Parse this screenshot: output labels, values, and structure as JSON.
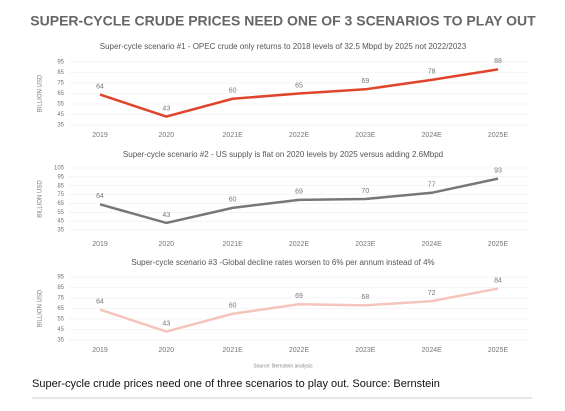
{
  "title": "SUPER-CYCLE CRUDE PRICES NEED ONE OF 3 SCENARIOS TO PLAY OUT",
  "chart_data": [
    {
      "type": "line",
      "subtitle": "Super-cycle scenario #1 - OPEC crude only returns to 2018 levels of 32.5 Mbpd by 2025 not 2022/2023",
      "y_label": "BILLION USD",
      "categories": [
        "2019",
        "2020",
        "2021E",
        "2022E",
        "2023E",
        "2024E",
        "2025E"
      ],
      "series": [
        {
          "name": "Scenario 1",
          "color": "#e0452b",
          "values": [
            64,
            43,
            60,
            65,
            69,
            78,
            88
          ]
        }
      ],
      "ylim": [
        35,
        95
      ],
      "yticks": [
        35,
        45,
        55,
        65,
        75,
        85,
        95
      ],
      "grid": true
    },
    {
      "type": "line",
      "subtitle": "Super-cycle scenario #2 - US supply is flat on 2020 levels by 2025 versus adding 2.6Mbpd",
      "y_label": "BILLION USD",
      "categories": [
        "2019",
        "2020",
        "2021E",
        "2022E",
        "2023E",
        "2024E",
        "2025E"
      ],
      "series": [
        {
          "name": "Scenario 2",
          "color": "#777777",
          "values": [
            64,
            43,
            60,
            69,
            70,
            77,
            93
          ]
        }
      ],
      "ylim": [
        35,
        105
      ],
      "yticks": [
        35,
        45,
        55,
        65,
        75,
        85,
        95,
        105
      ],
      "grid": true
    },
    {
      "type": "line",
      "subtitle": "Super-cycle scenario #3 -Global decline rates worsen to 6% per annum instead of 4%",
      "y_label": "BILLION USD",
      "categories": [
        "2019",
        "2020",
        "2021E",
        "2022E",
        "2023E",
        "2024E",
        "2025E"
      ],
      "series": [
        {
          "name": "Scenario 3",
          "color": "#f5c4bc",
          "values": [
            64,
            43,
            60,
            69,
            68,
            72,
            84
          ]
        }
      ],
      "ylim": [
        35,
        95
      ],
      "yticks": [
        35,
        45,
        55,
        65,
        75,
        85,
        95
      ],
      "grid": true
    }
  ],
  "source": "Source: Bernstein analysis",
  "caption": "Super-cycle crude prices need one of three scenarios to play out. Source: Bernstein"
}
